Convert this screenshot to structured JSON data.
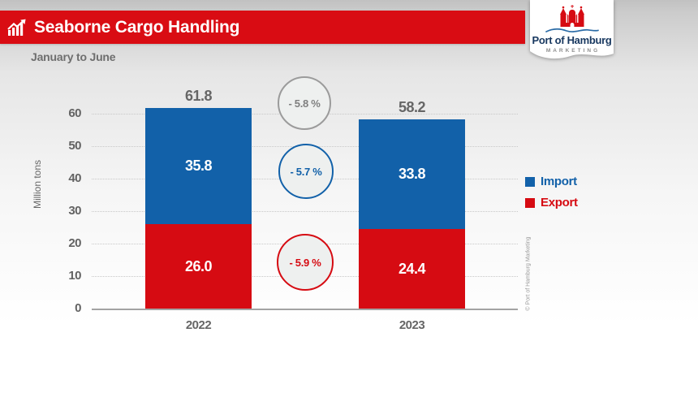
{
  "header": {
    "title": "Seaborne Cargo Handling",
    "subtitle": "January to June"
  },
  "logo": {
    "brand": "Port of Hamburg",
    "division": "MARKETING"
  },
  "chart_data": {
    "type": "bar",
    "variant": "stacked",
    "title": "Seaborne Cargo Handling",
    "subtitle": "January to June",
    "ylabel": "Million tons",
    "categories": [
      "2022",
      "2023"
    ],
    "series": [
      {
        "name": "Import",
        "color": "#1261a9",
        "values": [
          35.8,
          33.8
        ],
        "labels": [
          "35.8",
          "33.8"
        ]
      },
      {
        "name": "Export",
        "color": "#d60b12",
        "values": [
          26.0,
          24.4
        ],
        "labels": [
          "26.0",
          "24.4"
        ]
      }
    ],
    "totals": [
      61.8,
      58.2
    ],
    "changes": [
      {
        "label": "- 5.8 %",
        "applies_to": "total",
        "color": "#9b9b9b"
      },
      {
        "label": "- 5.7 %",
        "applies_to": "Import",
        "color": "#1261a9"
      },
      {
        "label": "- 5.9 %",
        "applies_to": "Export",
        "color": "#d60b12"
      }
    ],
    "yticks": [
      0,
      10,
      20,
      30,
      40,
      50,
      60
    ],
    "ylim": [
      0,
      60
    ],
    "grid": "dotted-horizontal",
    "legend_position": "right"
  },
  "copyright": "© Port of Hamburg Marketing"
}
